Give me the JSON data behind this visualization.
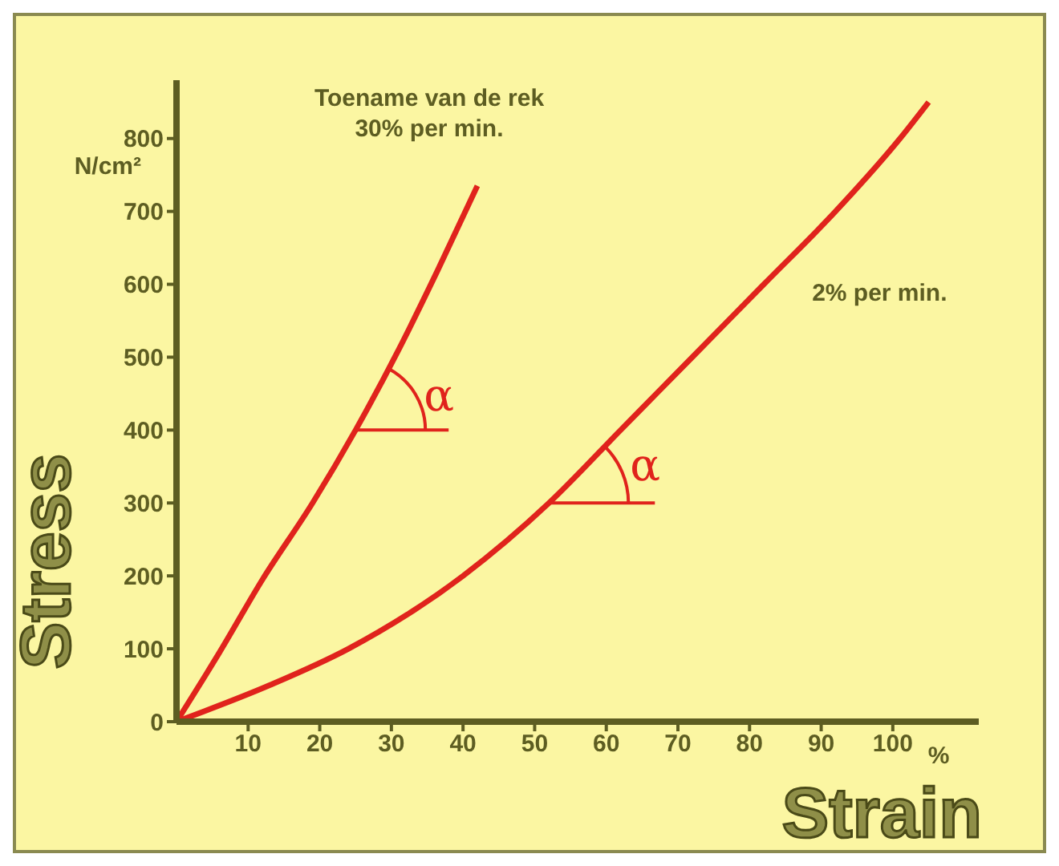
{
  "chart_data": {
    "type": "line",
    "xlabel": "Strain",
    "ylabel": "Stress",
    "series": [
      {
        "color": "#e0231c",
        "x": [
          0,
          6,
          12,
          19,
          25,
          31,
          36.5,
          42
        ],
        "values": [
          0,
          95,
          195,
          300,
          400,
          510,
          620,
          735
        ]
      },
      {
        "color": "#e0231c",
        "x": [
          0,
          13,
          24,
          40,
          52,
          62,
          72,
          82,
          92,
          101,
          105
        ],
        "values": [
          0,
          50,
          100,
          200,
          300,
          400,
          500,
          600,
          700,
          800,
          850
        ]
      }
    ],
    "annotations": [
      "N/cm²",
      "%",
      "Toename van de rek\n30% per min.",
      "2% per min.",
      {
        "text": "α",
        "x": 25,
        "y": 400
      },
      {
        "text": "α",
        "x": 52,
        "y": 300
      }
    ],
    "xlim": [
      0,
      112
    ],
    "ylim": [
      0,
      880
    ],
    "xticks": [
      10,
      20,
      30,
      40,
      50,
      60,
      70,
      80,
      90,
      100
    ],
    "yticks": [
      0,
      100,
      200,
      300,
      400,
      500,
      600,
      700,
      800
    ],
    "grid": false,
    "legend": false,
    "marker": "none",
    "line_style": "solid"
  }
}
